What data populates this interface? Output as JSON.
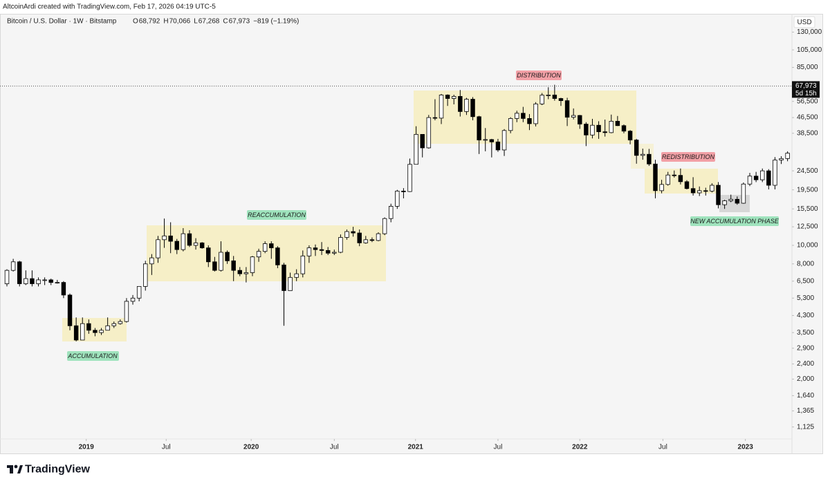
{
  "header": {
    "credit": "AltcoinArdi created with TradingView.com, Feb 17, 2026 04:19 UTC-5",
    "symbol": "Bitcoin / U.S. Dollar · 1W · Bitstamp",
    "ohlc": [
      {
        "label": "O",
        "value": "68,792"
      },
      {
        "label": "H",
        "value": "70,066"
      },
      {
        "label": "L",
        "value": "67,268"
      },
      {
        "label": "C",
        "value": "67,973"
      }
    ],
    "change": "−819 (−1.19%)"
  },
  "chart_data": {
    "type": "candlestick",
    "currency": "USD",
    "log_scale": true,
    "grid": false,
    "up_color": "#ffffff",
    "down_color": "#000000",
    "wick_color": "#000000",
    "last_price": {
      "value": 67973,
      "label": "67,973",
      "countdown": "5d 15h"
    },
    "xlim": [
      -1.1,
      124.7
    ],
    "xticks": [
      {
        "value": 12.6,
        "label": "2019"
      },
      {
        "value": 25.3,
        "label": "Jul"
      },
      {
        "value": 38.8,
        "label": "2020"
      },
      {
        "value": 52,
        "label": "Jul"
      },
      {
        "value": 64.9,
        "label": "2021"
      },
      {
        "value": 78,
        "label": "Jul"
      },
      {
        "value": 91,
        "label": "2022"
      },
      {
        "value": 104.2,
        "label": "Jul"
      },
      {
        "value": 117.3,
        "label": "2023"
      }
    ],
    "ylim": [
      818,
      162000
    ],
    "yticks": [
      {
        "value": 130000,
        "label": "130,000"
      },
      {
        "value": 105000,
        "label": "105,000"
      },
      {
        "value": 85000,
        "label": "85,000"
      },
      {
        "value": 56500,
        "label": "56,500"
      },
      {
        "value": 46500,
        "label": "46,500"
      },
      {
        "value": 38500,
        "label": "38,500"
      },
      {
        "value": 24500,
        "label": "24,500"
      },
      {
        "value": 19500,
        "label": "19,500"
      },
      {
        "value": 15500,
        "label": "15,500"
      },
      {
        "value": 12500,
        "label": "12,500"
      },
      {
        "value": 10000,
        "label": "10,000"
      },
      {
        "value": 8000,
        "label": "8,000"
      },
      {
        "value": 6500,
        "label": "6,500"
      },
      {
        "value": 5300,
        "label": "5,300"
      },
      {
        "value": 4300,
        "label": "4,300"
      },
      {
        "value": 3500,
        "label": "3,500"
      },
      {
        "value": 2900,
        "label": "2,900"
      },
      {
        "value": 2400,
        "label": "2,400"
      },
      {
        "value": 2000,
        "label": "2,000"
      },
      {
        "value": 1640,
        "label": "1,640"
      },
      {
        "value": 1365,
        "label": "1,365"
      },
      {
        "value": 1125,
        "label": "1,125"
      }
    ],
    "open": [
      6300,
      7400,
      8200,
      6300,
      6700,
      6300,
      6600,
      6600,
      6400,
      6400,
      5500,
      3800,
      3200,
      3900,
      3600,
      3500,
      3600,
      3800,
      3900,
      4000,
      5100,
      5300,
      6100,
      8000,
      8600,
      10700,
      11200,
      10500,
      9500,
      11500,
      10000,
      10300,
      9700,
      8200,
      7400,
      9200,
      8300,
      7400,
      7100,
      7200,
      8700,
      9300,
      10200,
      9700,
      7900,
      5800,
      6800,
      7100,
      8800,
      9700,
      9500,
      9400,
      9100,
      9200,
      11000,
      11800,
      11600,
      10300,
      10700,
      10600,
      11500,
      13800,
      16000,
      19200,
      19100,
      26500,
      38000,
      32300,
      46500,
      46200,
      61000,
      58500,
      60000,
      50000,
      58000,
      47000,
      35500,
      35700,
      34700,
      31500,
      39800,
      46000,
      49000,
      46000,
      43200,
      54800,
      60900,
      61000,
      58500,
      57000,
      46700,
      47700,
      43000,
      37700,
      42400,
      39200,
      38800,
      44500,
      42200,
      39500,
      35500,
      29500,
      29900,
      26600,
      19300,
      20800,
      23300,
      23200,
      21500,
      19800,
      18800,
      19300,
      19200,
      20600,
      16300,
      17100,
      17400,
      16600,
      20900,
      23000,
      22000,
      24500,
      20600,
      27900,
      28400
    ],
    "high": [
      7500,
      8500,
      8300,
      7400,
      7400,
      6800,
      6800,
      6700,
      6600,
      6500,
      5600,
      4200,
      4200,
      4100,
      3700,
      3700,
      4200,
      4000,
      4100,
      5300,
      5500,
      6100,
      8300,
      9000,
      11200,
      13800,
      13200,
      10800,
      12300,
      12000,
      10900,
      10400,
      10000,
      8700,
      10500,
      9400,
      8800,
      7700,
      7700,
      8800,
      9600,
      10500,
      10500,
      9900,
      8100,
      7200,
      7500,
      9400,
      10000,
      10100,
      10400,
      9800,
      9500,
      11400,
      12100,
      12500,
      12100,
      11200,
      11000,
      11700,
      14000,
      16500,
      19500,
      19900,
      28400,
      41900,
      38000,
      48000,
      58000,
      61800,
      61500,
      61200,
      64800,
      59000,
      59500,
      47500,
      41000,
      36000,
      36000,
      40500,
      46700,
      50500,
      52900,
      48500,
      56000,
      62500,
      67000,
      69000,
      59000,
      59000,
      51900,
      48000,
      44000,
      45800,
      44500,
      45400,
      48200,
      47400,
      42800,
      40000,
      36000,
      32000,
      31900,
      28000,
      22000,
      24200,
      24600,
      25200,
      21900,
      22700,
      20300,
      20000,
      21100,
      21400,
      17300,
      18400,
      18000,
      21300,
      23900,
      24200,
      25200,
      25000,
      28900,
      29200,
      31000
    ],
    "low": [
      6100,
      7300,
      6100,
      6200,
      6100,
      6100,
      6200,
      6200,
      6300,
      5300,
      3600,
      3150,
      3200,
      3450,
      3350,
      3400,
      3600,
      3700,
      3850,
      3950,
      4900,
      5100,
      5800,
      7000,
      8100,
      9700,
      9100,
      9000,
      9300,
      9800,
      9500,
      9600,
      7700,
      7300,
      7300,
      8000,
      6500,
      6900,
      6400,
      6900,
      8200,
      9100,
      8500,
      7600,
      3800,
      5800,
      6500,
      6800,
      8100,
      8800,
      8900,
      8900,
      8900,
      9100,
      10700,
      11100,
      9900,
      10200,
      10400,
      10500,
      11300,
      13200,
      15500,
      17600,
      19000,
      26500,
      28800,
      32000,
      45000,
      43000,
      53500,
      54500,
      47100,
      48000,
      45000,
      30000,
      31000,
      28800,
      30800,
      29300,
      38500,
      44000,
      44000,
      40000,
      41800,
      54000,
      58000,
      57000,
      53500,
      42000,
      45500,
      40600,
      33000,
      36200,
      36000,
      37000,
      38500,
      42000,
      38500,
      33700,
      26700,
      28000,
      26000,
      17600,
      18700,
      20500,
      22600,
      20800,
      19600,
      18200,
      18100,
      18200,
      18900,
      15600,
      15500,
      16800,
      16300,
      16500,
      20400,
      21400,
      21400,
      19600,
      19600,
      26600,
      27500
    ],
    "close": [
      7400,
      8200,
      6300,
      6700,
      6300,
      6600,
      6600,
      6400,
      6400,
      5500,
      3800,
      3200,
      3900,
      3600,
      3500,
      3600,
      3800,
      3900,
      4000,
      5100,
      5300,
      6100,
      8000,
      8600,
      10700,
      11200,
      10500,
      9500,
      11500,
      10000,
      10300,
      9700,
      8200,
      7400,
      9200,
      8300,
      7400,
      7100,
      7200,
      8700,
      9300,
      10200,
      9700,
      7900,
      5800,
      6800,
      7100,
      8800,
      9700,
      9500,
      9400,
      9100,
      9200,
      11000,
      11800,
      11600,
      10300,
      10700,
      10600,
      11500,
      13800,
      16000,
      19200,
      19100,
      26500,
      38000,
      32300,
      46500,
      46200,
      61000,
      58500,
      60000,
      50000,
      58000,
      47000,
      35500,
      35700,
      34700,
      31500,
      39800,
      46000,
      49000,
      46000,
      43200,
      54800,
      60900,
      61000,
      58500,
      57000,
      46700,
      47700,
      43000,
      37700,
      42400,
      39200,
      38800,
      44500,
      42200,
      39500,
      35500,
      29500,
      29900,
      26600,
      19300,
      20800,
      23300,
      23200,
      21500,
      19800,
      18800,
      19300,
      19200,
      20600,
      16300,
      17100,
      17400,
      16600,
      20900,
      23000,
      22000,
      24500,
      20600,
      27900,
      28400,
      30300
    ],
    "annotations": [
      {
        "text": "ACCUMULATION"
      },
      {
        "text": "REACCUMULATION"
      },
      {
        "text": "DISTRIBUTION"
      },
      {
        "text": "REDISTRIBUTION"
      },
      {
        "text": "NEW ACCUMULATION PHASE"
      }
    ]
  },
  "footer": {
    "brand": "TradingView"
  }
}
